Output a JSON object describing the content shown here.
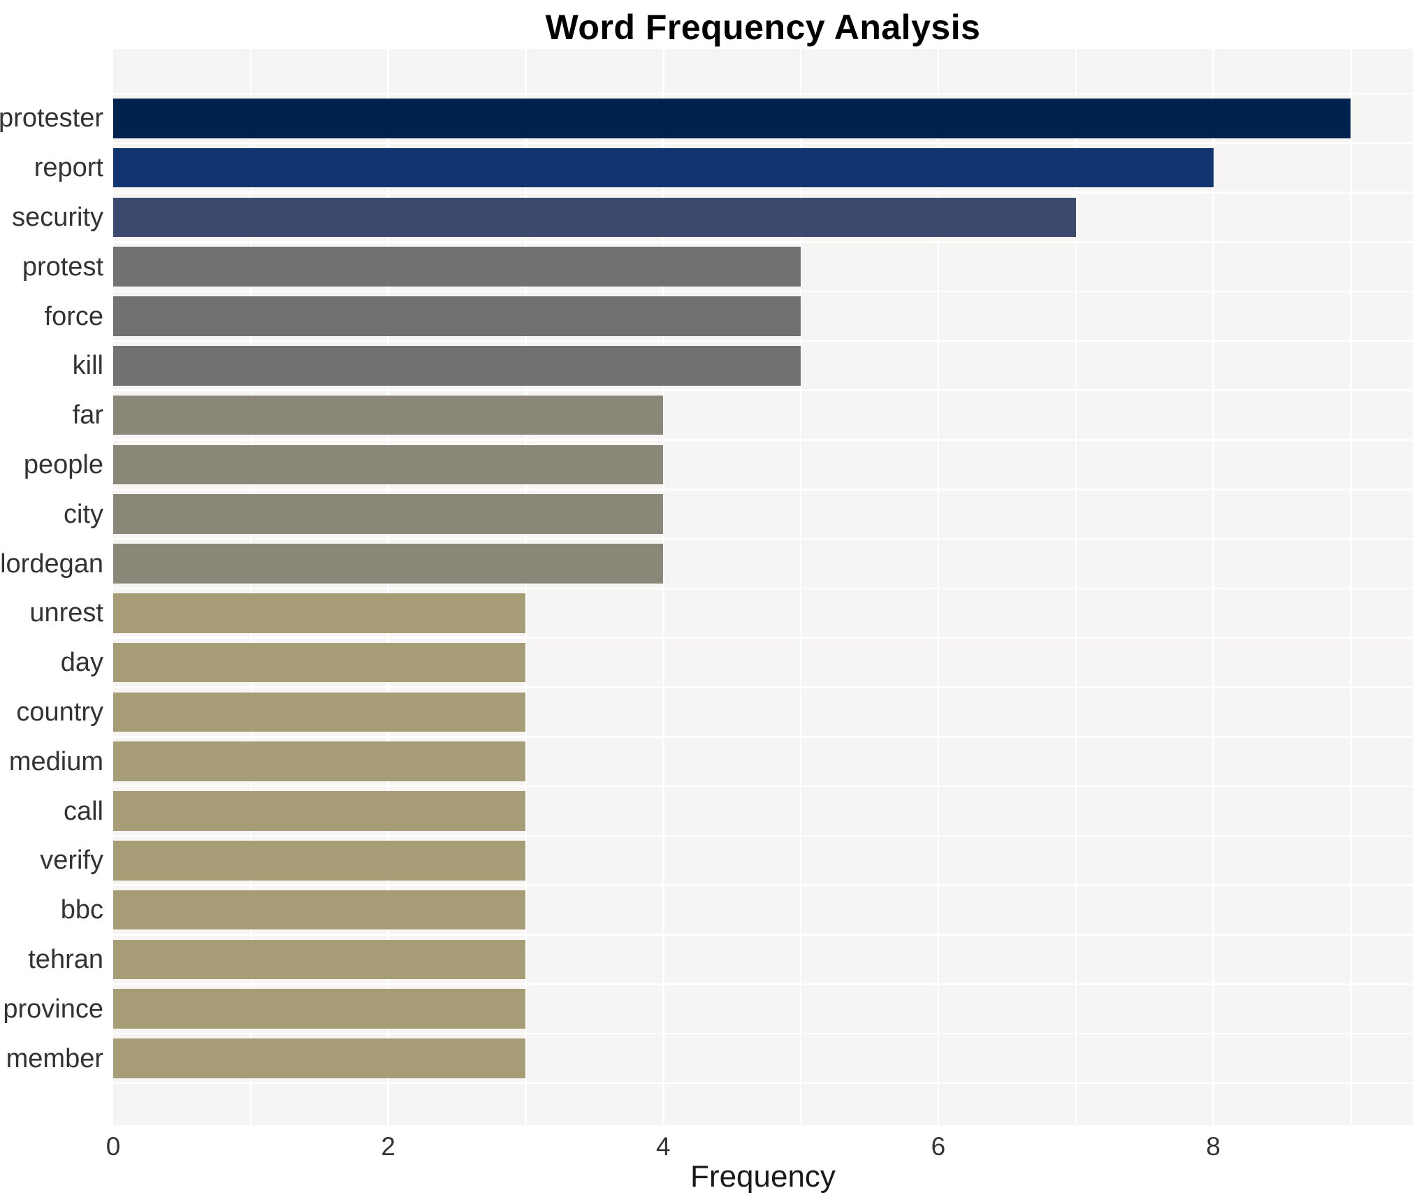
{
  "chart_data": {
    "type": "bar",
    "orientation": "horizontal",
    "title": "Word Frequency Analysis",
    "xlabel": "Frequency",
    "ylabel": "",
    "categories": [
      "protester",
      "report",
      "security",
      "protest",
      "force",
      "kill",
      "far",
      "people",
      "city",
      "lordegan",
      "unrest",
      "day",
      "country",
      "medium",
      "call",
      "verify",
      "bbc",
      "tehran",
      "province",
      "member"
    ],
    "values": [
      9,
      8,
      7,
      5,
      5,
      5,
      4,
      4,
      4,
      4,
      3,
      3,
      3,
      3,
      3,
      3,
      3,
      3,
      3,
      3
    ],
    "bar_colors": [
      "#00224e",
      "#123570",
      "#3b496c",
      "#707173",
      "#707173",
      "#707173",
      "#8a8678",
      "#8a8678",
      "#8a8678",
      "#8a8678",
      "#a69c75",
      "#a69c75",
      "#a69c75",
      "#a69c75",
      "#a69c75",
      "#a69c75",
      "#a69c75",
      "#a69c75",
      "#a69c75",
      "#a69c75"
    ],
    "xlim": [
      0,
      9.45
    ],
    "xticks": [
      0,
      2,
      4,
      6,
      8
    ],
    "grid": true,
    "gridline_color": "#ffffff",
    "minor_gridlines": [
      1,
      3,
      5,
      7,
      9
    ],
    "panel_background": "#f6f5f4",
    "legend": false
  }
}
